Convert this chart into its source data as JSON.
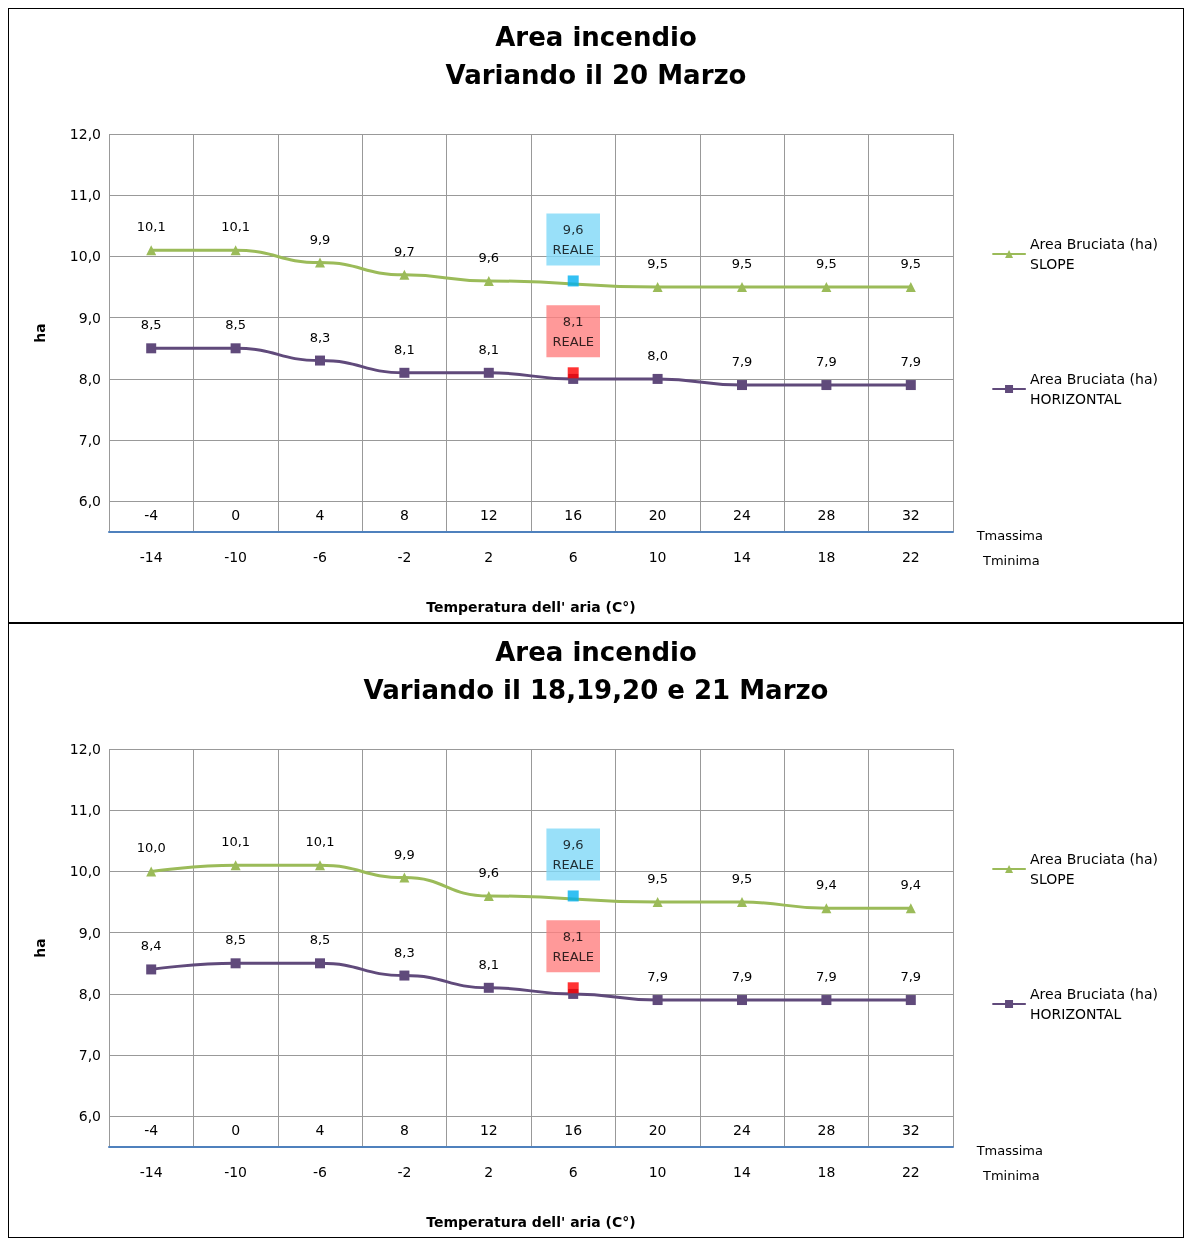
{
  "chart_data": [
    {
      "type": "line",
      "title": "Area incendio",
      "subtitle": "Variando il 20 Marzo",
      "xlabel": "Temperatura dell' aria (C°)",
      "ylabel": "ha",
      "x2label": "Tminima",
      "annotations": [
        "Tmassima"
      ],
      "categories": [
        "-4",
        "0",
        "4",
        "8",
        "12",
        "16",
        "20",
        "24",
        "28",
        "32"
      ],
      "x2lim": [
        -16,
        24
      ],
      "x2ticks": [
        -14,
        -10,
        -6,
        -2,
        2,
        6,
        10,
        14,
        18,
        22
      ],
      "ylim": [
        5.5,
        12
      ],
      "yticks": [
        {
          "value": 6,
          "label": "6,0"
        },
        {
          "value": 7,
          "label": "7,0"
        },
        {
          "value": 8,
          "label": "8,0"
        },
        {
          "value": 9,
          "label": "9,0"
        },
        {
          "value": 10,
          "label": "10,0"
        },
        {
          "value": 11,
          "label": "11,0"
        },
        {
          "value": 12,
          "label": "12,0"
        }
      ],
      "grid": true,
      "legend": "right",
      "series": [
        {
          "name": "Area Bruciata (ha)\nSLOPE",
          "marker": "triangle",
          "color": "#9bbb59",
          "values": [
            10.1,
            10.1,
            9.9,
            9.7,
            9.6,
            null,
            9.5,
            9.5,
            9.5,
            9.5
          ],
          "value_labels": [
            "10,1",
            "10,1",
            "9,9",
            "9,7",
            "9,6",
            null,
            "9,5",
            "9,5",
            "9,5",
            "9,5"
          ]
        },
        {
          "name": "Area Bruciata (ha)\nHORIZONTAL",
          "marker": "square",
          "color": "#604a7b",
          "values": [
            8.5,
            8.5,
            8.3,
            8.1,
            8.1,
            8.0,
            8.0,
            7.9,
            7.9,
            7.9
          ],
          "value_labels": [
            "8,5",
            "8,5",
            "8,3",
            "8,1",
            "8,1",
            null,
            "8,0",
            "7,9",
            "7,9",
            "7,9"
          ]
        },
        {
          "name": "REALE",
          "type": "scatter",
          "marker": "square",
          "color": "#00b0f0",
          "x": [
            "16"
          ],
          "values": [
            9.6
          ],
          "value_labels": [
            "9,6"
          ]
        },
        {
          "name": "REALE",
          "type": "scatter",
          "marker": "square",
          "color": "#ff0000",
          "x": [
            "16"
          ],
          "values": [
            8.1
          ],
          "value_labels": [
            "8,1"
          ]
        }
      ]
    },
    {
      "type": "line",
      "title": "Area incendio",
      "subtitle": "Variando il 18,19,20 e 21 Marzo",
      "xlabel": "Temperatura dell' aria (C°)",
      "ylabel": "ha",
      "x2label": "Tminima",
      "annotations": [
        "Tmassima"
      ],
      "categories": [
        "-4",
        "0",
        "4",
        "8",
        "12",
        "16",
        "20",
        "24",
        "28",
        "32"
      ],
      "x2lim": [
        -16,
        24
      ],
      "x2ticks": [
        -14,
        -10,
        -6,
        -2,
        2,
        6,
        10,
        14,
        18,
        22
      ],
      "ylim": [
        5.5,
        12
      ],
      "yticks": [
        {
          "value": 6,
          "label": "6,0"
        },
        {
          "value": 7,
          "label": "7,0"
        },
        {
          "value": 8,
          "label": "8,0"
        },
        {
          "value": 9,
          "label": "9,0"
        },
        {
          "value": 10,
          "label": "10,0"
        },
        {
          "value": 11,
          "label": "11,0"
        },
        {
          "value": 12,
          "label": "12,0"
        }
      ],
      "grid": true,
      "legend": "right",
      "series": [
        {
          "name": "Area Bruciata (ha)\nSLOPE",
          "marker": "triangle",
          "color": "#9bbb59",
          "values": [
            10.0,
            10.1,
            10.1,
            9.9,
            9.6,
            null,
            9.5,
            9.5,
            9.4,
            9.4
          ],
          "value_labels": [
            "10,0",
            "10,1",
            "10,1",
            "9,9",
            "9,6",
            null,
            "9,5",
            "9,5",
            "9,4",
            "9,4"
          ]
        },
        {
          "name": "Area Bruciata (ha)\nHORIZONTAL",
          "marker": "square",
          "color": "#604a7b",
          "values": [
            8.4,
            8.5,
            8.5,
            8.3,
            8.1,
            8.0,
            7.9,
            7.9,
            7.9,
            7.9
          ],
          "value_labels": [
            "8,4",
            "8,5",
            "8,5",
            "8,3",
            "8,1",
            null,
            "7,9",
            "7,9",
            "7,9",
            "7,9"
          ]
        },
        {
          "name": "REALE",
          "type": "scatter",
          "marker": "square",
          "color": "#00b0f0",
          "x": [
            "16"
          ],
          "values": [
            9.6
          ],
          "value_labels": [
            "9,6"
          ]
        },
        {
          "name": "REALE",
          "type": "scatter",
          "marker": "square",
          "color": "#ff0000",
          "x": [
            "16"
          ],
          "values": [
            8.1
          ],
          "value_labels": [
            "8,1"
          ]
        }
      ]
    }
  ]
}
